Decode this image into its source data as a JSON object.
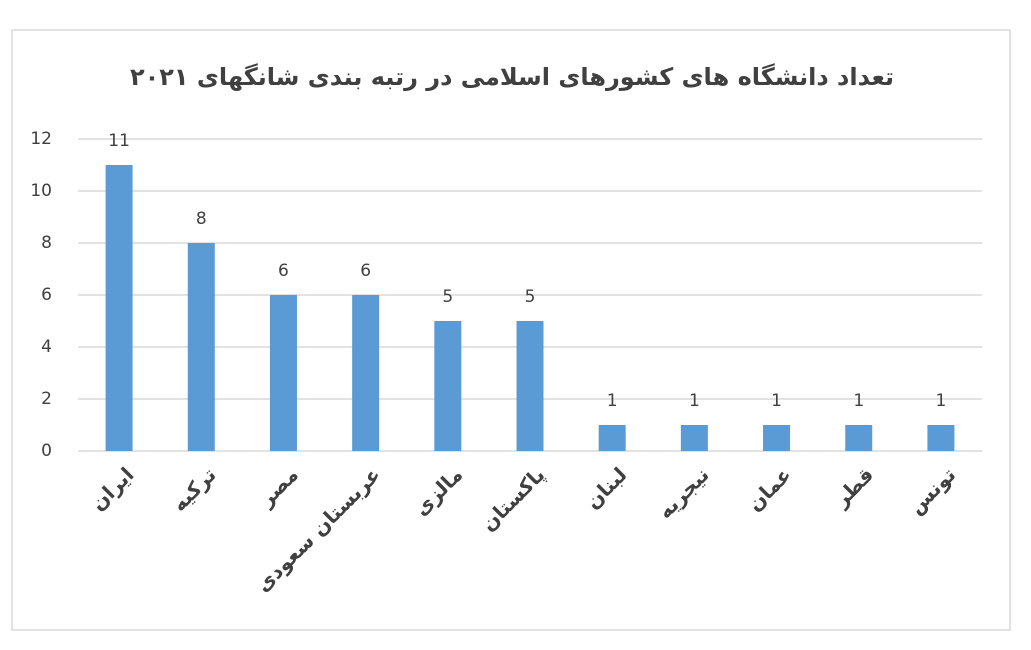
{
  "chart_data": {
    "type": "bar",
    "title": "تعداد دانشگاه های کشورهای اسلامی در رتبه بندی شانگهای ۲۰۲۱",
    "categories": [
      "ایران",
      "ترکیه",
      "مصر",
      "عربستان سعودی",
      "مالزی",
      "پاکستان",
      "لبنان",
      "نیجریه",
      "عمان",
      "قطر",
      "تونس"
    ],
    "values": [
      11,
      8,
      6,
      6,
      5,
      5,
      1,
      1,
      1,
      1,
      1
    ],
    "color": "#5b9bd5",
    "ylim": [
      0,
      12
    ],
    "yticks": [
      0,
      2,
      4,
      6,
      8,
      10,
      12
    ],
    "grid": true
  }
}
